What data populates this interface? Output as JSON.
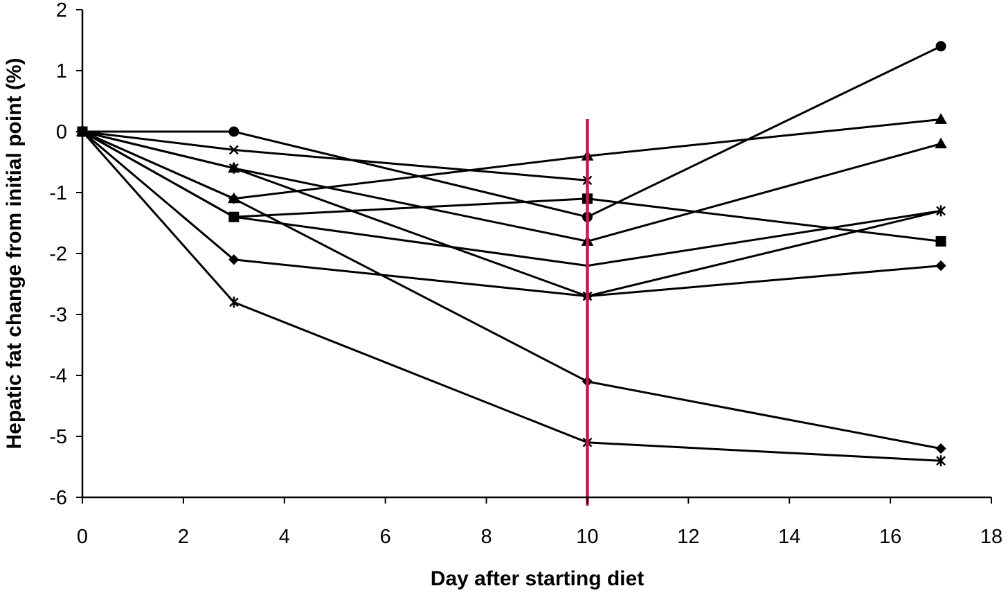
{
  "chart_data": {
    "type": "line",
    "title": "",
    "xlabel": "Day after starting diet",
    "ylabel": "Hepatic fat change from initial point (%)",
    "xlim": [
      0,
      18
    ],
    "ylim": [
      -6,
      2
    ],
    "xticks": [
      0,
      2,
      4,
      6,
      8,
      10,
      12,
      14,
      16,
      18
    ],
    "yticks": [
      2,
      1,
      0,
      -1,
      -2,
      -3,
      -4,
      -5,
      -6
    ],
    "grid": false,
    "legend": "none",
    "line_color": "#000000",
    "reference_line": {
      "x": 10,
      "color": "#c0185a"
    },
    "series": [
      {
        "marker": "circle",
        "x": [
          0,
          3,
          10,
          17
        ],
        "y": [
          0,
          0,
          -1.4,
          1.4
        ]
      },
      {
        "marker": "triangle",
        "x": [
          0,
          3,
          10,
          17
        ],
        "y": [
          0,
          -1.1,
          -0.4,
          0.2
        ]
      },
      {
        "marker": "triangle",
        "x": [
          0,
          3,
          10,
          17
        ],
        "y": [
          0,
          -0.6,
          -1.8,
          -0.2
        ]
      },
      {
        "marker": "x",
        "x": [
          0,
          3,
          10
        ],
        "y": [
          0,
          -0.3,
          -0.8
        ]
      },
      {
        "marker": "square",
        "x": [
          0,
          3,
          10,
          17
        ],
        "y": [
          0,
          -1.4,
          -1.1,
          -1.8
        ]
      },
      {
        "marker": "asterisk",
        "x": [
          0,
          3,
          10,
          17
        ],
        "y": [
          0,
          -0.6,
          -2.7,
          -1.3
        ]
      },
      {
        "marker": "none",
        "x": [
          0,
          3,
          10,
          17
        ],
        "y": [
          0,
          -1.4,
          -2.2,
          -1.3
        ]
      },
      {
        "marker": "diamond",
        "x": [
          0,
          3,
          10,
          17
        ],
        "y": [
          0,
          -2.1,
          -2.7,
          -2.2
        ]
      },
      {
        "marker": "diamond",
        "x": [
          0,
          3,
          10,
          17
        ],
        "y": [
          0,
          -1.1,
          -4.1,
          -5.2
        ]
      },
      {
        "marker": "asterisk",
        "x": [
          0,
          3,
          10,
          17
        ],
        "y": [
          0,
          -2.8,
          -5.1,
          -5.4
        ]
      }
    ]
  }
}
